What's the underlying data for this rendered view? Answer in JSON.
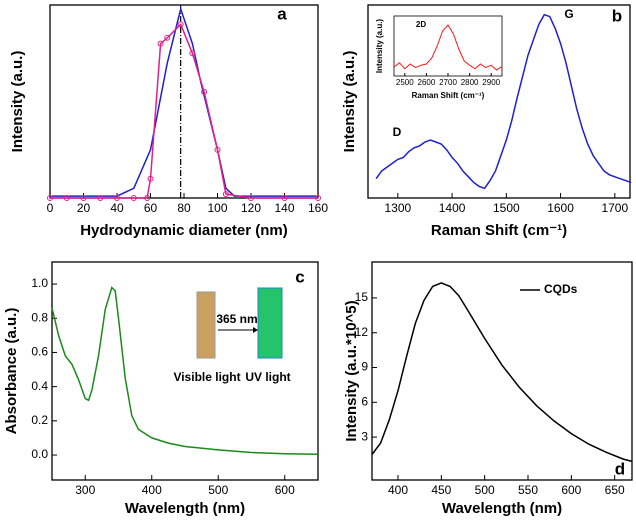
{
  "chart_data": [
    {
      "type": "line",
      "panel_label": "a",
      "xlabel": "Hydrodynamic diameter (nm)",
      "ylabel": "Intensity (a.u.)",
      "xlim": [
        0,
        160
      ],
      "xticks": [
        0,
        20,
        40,
        60,
        80,
        100,
        120,
        140,
        160
      ],
      "ylim": [
        0,
        1
      ],
      "vline": 78,
      "series": [
        {
          "color": "#1f1fd6",
          "x": [
            0,
            40,
            50,
            60,
            70,
            78,
            85,
            90,
            100,
            105,
            110,
            160
          ],
          "values": [
            0.01,
            0.01,
            0.05,
            0.25,
            0.7,
            0.98,
            0.8,
            0.6,
            0.25,
            0.05,
            0.01,
            0.01
          ]
        },
        {
          "color": "#e0208a",
          "marker": true,
          "x": [
            0,
            10,
            20,
            30,
            40,
            50,
            58,
            60,
            66,
            70,
            78,
            85,
            92,
            100,
            105,
            120,
            140,
            160
          ],
          "values": [
            0,
            0,
            0,
            0,
            0,
            0,
            0,
            0.1,
            0.8,
            0.83,
            0.9,
            0.75,
            0.55,
            0.25,
            0.02,
            0,
            0,
            0
          ]
        }
      ]
    },
    {
      "type": "line",
      "panel_label": "b",
      "xlabel": "Raman Shift (cm⁻¹)",
      "ylabel": "Intensity (a.u.)",
      "xlim": [
        1245,
        1728
      ],
      "xticks": [
        1300,
        1400,
        1500,
        1600,
        1700
      ],
      "ylim": [
        0,
        1
      ],
      "annotations": [
        "D",
        "G"
      ],
      "series": [
        {
          "color": "#1f1fd6",
          "x": [
            1260,
            1270,
            1280,
            1290,
            1300,
            1310,
            1320,
            1330,
            1340,
            1350,
            1360,
            1370,
            1380,
            1390,
            1400,
            1410,
            1420,
            1430,
            1440,
            1450,
            1460,
            1470,
            1480,
            1490,
            1500,
            1510,
            1520,
            1530,
            1540,
            1550,
            1560,
            1570,
            1580,
            1590,
            1600,
            1610,
            1620,
            1630,
            1640,
            1650,
            1660,
            1670,
            1680,
            1690,
            1700,
            1710,
            1720,
            1730
          ],
          "values": [
            0.1,
            0.14,
            0.16,
            0.18,
            0.2,
            0.21,
            0.24,
            0.26,
            0.27,
            0.29,
            0.3,
            0.29,
            0.28,
            0.25,
            0.21,
            0.18,
            0.14,
            0.11,
            0.08,
            0.06,
            0.05,
            0.09,
            0.14,
            0.22,
            0.3,
            0.4,
            0.52,
            0.63,
            0.74,
            0.82,
            0.9,
            0.95,
            0.94,
            0.88,
            0.8,
            0.7,
            0.58,
            0.46,
            0.36,
            0.28,
            0.22,
            0.18,
            0.14,
            0.12,
            0.11,
            0.1,
            0.09,
            0.08
          ]
        }
      ],
      "inset": {
        "type": "line",
        "xlabel": "Raman Shift (cm⁻¹)",
        "ylabel": "Intensity (a.u.)",
        "xlim": [
          2450,
          2950
        ],
        "xticks": [
          2500,
          2600,
          2700,
          2800,
          2900
        ],
        "ylim": [
          0,
          1
        ],
        "annotations": [
          "2D"
        ],
        "series": [
          {
            "color": "#ff1a1a",
            "x": [
              2450,
              2475,
              2500,
              2525,
              2550,
              2575,
              2600,
              2625,
              2650,
              2675,
              2700,
              2725,
              2750,
              2775,
              2800,
              2825,
              2850,
              2875,
              2900,
              2925,
              2950
            ],
            "values": [
              0.15,
              0.22,
              0.12,
              0.2,
              0.14,
              0.18,
              0.2,
              0.3,
              0.5,
              0.75,
              0.85,
              0.7,
              0.45,
              0.25,
              0.18,
              0.12,
              0.2,
              0.14,
              0.18,
              0.1,
              0.16
            ]
          }
        ]
      }
    },
    {
      "type": "line",
      "panel_label": "c",
      "xlabel": "Wavelength (nm)",
      "ylabel": "Absorbance (a.u.)",
      "xlim": [
        250,
        650
      ],
      "xticks": [
        300,
        400,
        500,
        600
      ],
      "ylim": [
        -0.146,
        1.129
      ],
      "yticks": [
        {
          "value": 0,
          "label": "0.0"
        },
        0.2,
        0.4,
        0.6,
        0.8,
        {
          "value": 1,
          "label": "1.0"
        }
      ],
      "annotations": [
        "365 nm",
        "Visible light",
        "UV light"
      ],
      "series": [
        {
          "color": "#1a8a1a",
          "x": [
            250,
            260,
            270,
            280,
            290,
            300,
            305,
            310,
            320,
            330,
            340,
            345,
            350,
            360,
            370,
            380,
            400,
            425,
            450,
            500,
            550,
            600,
            650
          ],
          "values": [
            0.86,
            0.7,
            0.58,
            0.53,
            0.44,
            0.33,
            0.32,
            0.38,
            0.58,
            0.85,
            0.98,
            0.96,
            0.8,
            0.45,
            0.23,
            0.15,
            0.1,
            0.07,
            0.05,
            0.03,
            0.015,
            0.008,
            0.005
          ]
        }
      ]
    },
    {
      "type": "line",
      "panel_label": "d",
      "xlabel": "Wavelength (nm)",
      "ylabel": "Intensity (a.u.*10^5)",
      "xlim": [
        370,
        670
      ],
      "xticks": [
        400,
        450,
        500,
        550,
        600,
        650
      ],
      "ylim": [
        -0.7,
        18.1
      ],
      "yticks": [
        3,
        6,
        9,
        12,
        15
      ],
      "legend": "upper right",
      "series": [
        {
          "name": "CQDs",
          "color": "#000000",
          "x": [
            370,
            380,
            390,
            400,
            410,
            420,
            430,
            440,
            450,
            460,
            470,
            480,
            500,
            520,
            540,
            560,
            580,
            600,
            620,
            640,
            660,
            670
          ],
          "values": [
            1.5,
            2.5,
            4.5,
            7,
            10,
            12.8,
            14.8,
            16,
            16.3,
            16,
            15.2,
            14,
            11.5,
            9.2,
            7.3,
            5.7,
            4.4,
            3.3,
            2.4,
            1.7,
            1.1,
            0.9
          ]
        }
      ]
    }
  ]
}
